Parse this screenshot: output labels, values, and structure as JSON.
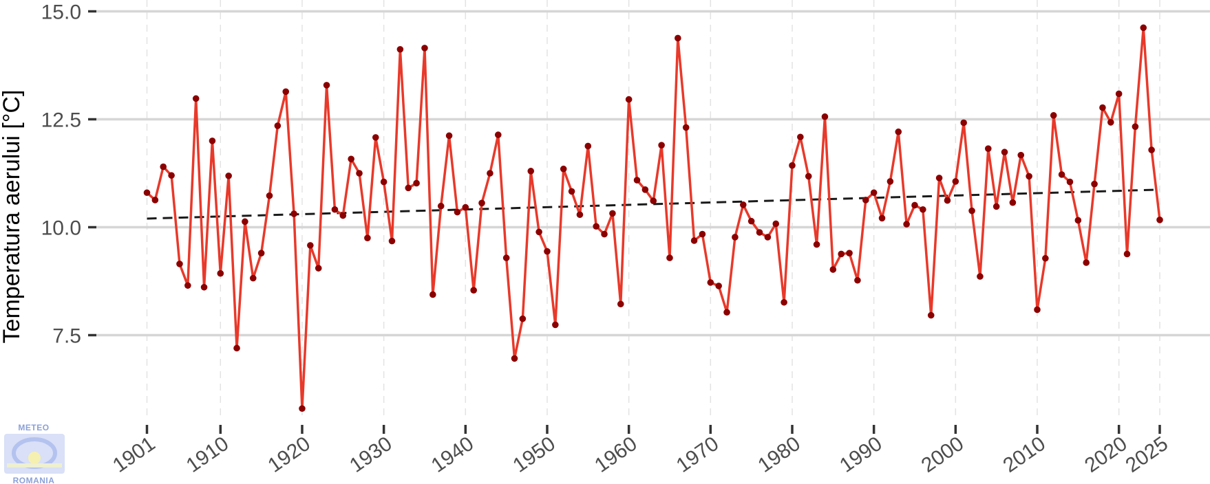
{
  "chart_data": {
    "type": "line",
    "ylabel": "Temperatura aerului [°C]",
    "xlabel": "",
    "ylim": [
      5.6,
      15.2
    ],
    "xlim": [
      1901,
      2025
    ],
    "y_ticks": [
      "7.5",
      "10.0",
      "12.5",
      "15.0"
    ],
    "y_tick_values": [
      7.5,
      10.0,
      12.5,
      15.0
    ],
    "x_ticks": [
      "1901",
      "1910",
      "1920",
      "1930",
      "1940",
      "1950",
      "1960",
      "1970",
      "1980",
      "1990",
      "2000",
      "2010",
      "2020",
      "2025"
    ],
    "x_tick_values": [
      1901,
      1910,
      1920,
      1930,
      1940,
      1950,
      1960,
      1970,
      1980,
      1990,
      2000,
      2010,
      2020,
      2025
    ],
    "grid": true,
    "series": [
      {
        "color": "#e8392a",
        "marker_color": "#8b0000",
        "x": [
          1901,
          1902,
          1903,
          1904,
          1905,
          1906,
          1907,
          1908,
          1909,
          1910,
          1911,
          1912,
          1913,
          1914,
          1915,
          1916,
          1917,
          1918,
          1919,
          1920,
          1921,
          1922,
          1923,
          1924,
          1925,
          1926,
          1927,
          1928,
          1929,
          1930,
          1931,
          1932,
          1933,
          1934,
          1935,
          1936,
          1937,
          1938,
          1939,
          1940,
          1941,
          1942,
          1943,
          1944,
          1945,
          1946,
          1947,
          1948,
          1949,
          1950,
          1951,
          1952,
          1953,
          1954,
          1955,
          1956,
          1957,
          1958,
          1959,
          1960,
          1961,
          1962,
          1963,
          1964,
          1965,
          1966,
          1967,
          1968,
          1969,
          1970,
          1971,
          1972,
          1973,
          1974,
          1975,
          1976,
          1977,
          1978,
          1979,
          1980,
          1981,
          1982,
          1983,
          1984,
          1985,
          1986,
          1987,
          1988,
          1989,
          1990,
          1991,
          1992,
          1993,
          1994,
          1995,
          1996,
          1997,
          1998,
          1999,
          2000,
          2001,
          2002,
          2003,
          2004,
          2005,
          2006,
          2007,
          2008,
          2009,
          2010,
          2011,
          2012,
          2013,
          2014,
          2015,
          2016,
          2017,
          2018,
          2019,
          2020,
          2021,
          2022,
          2023,
          2024,
          2025
        ],
        "values": [
          10.8,
          10.63,
          11.4,
          11.2,
          9.15,
          8.65,
          12.98,
          8.61,
          12.0,
          8.93,
          11.19,
          7.2,
          10.13,
          8.82,
          9.4,
          10.73,
          12.35,
          13.14,
          10.31,
          5.8,
          9.58,
          9.05,
          13.29,
          10.41,
          10.27,
          11.58,
          11.25,
          9.75,
          12.08,
          11.05,
          9.68,
          14.12,
          10.91,
          11.02,
          14.15,
          8.44,
          10.49,
          12.12,
          10.35,
          10.46,
          8.54,
          10.56,
          11.25,
          12.14,
          9.29,
          6.96,
          7.88,
          11.3,
          9.89,
          9.44,
          7.74,
          11.35,
          10.83,
          10.29,
          11.88,
          10.02,
          9.84,
          10.32,
          8.22,
          12.96,
          11.09,
          10.87,
          10.61,
          11.9,
          9.29,
          14.38,
          12.31,
          9.69,
          9.84,
          8.72,
          8.64,
          8.03,
          9.77,
          10.52,
          10.14,
          9.88,
          9.77,
          10.08,
          8.26,
          11.43,
          12.09,
          11.18,
          9.6,
          12.56,
          9.02,
          9.38,
          9.4,
          8.77,
          10.63,
          10.8,
          10.21,
          11.06,
          12.21,
          10.07,
          10.51,
          10.41,
          7.96,
          11.14,
          10.62,
          11.06,
          12.42,
          10.38,
          8.86,
          11.82,
          10.48,
          11.74,
          10.57,
          11.67,
          11.18,
          8.09,
          9.28,
          12.59,
          11.22,
          11.05,
          10.16,
          9.18,
          11.0,
          12.77,
          12.43,
          13.09,
          9.38,
          12.33,
          14.62,
          11.79,
          10.17
        ]
      },
      {
        "type": "trend",
        "style": "dashed",
        "color": "#1a1a1a",
        "x": [
          1901,
          2025
        ],
        "values": [
          10.2,
          10.87
        ]
      }
    ]
  },
  "logo": {
    "top_text": "METEO",
    "bottom_text": "ROMANIA",
    "colors": {
      "text": "#8aa0d8",
      "ring": "#c9d3f3",
      "sun": "#f6f0b0"
    }
  }
}
